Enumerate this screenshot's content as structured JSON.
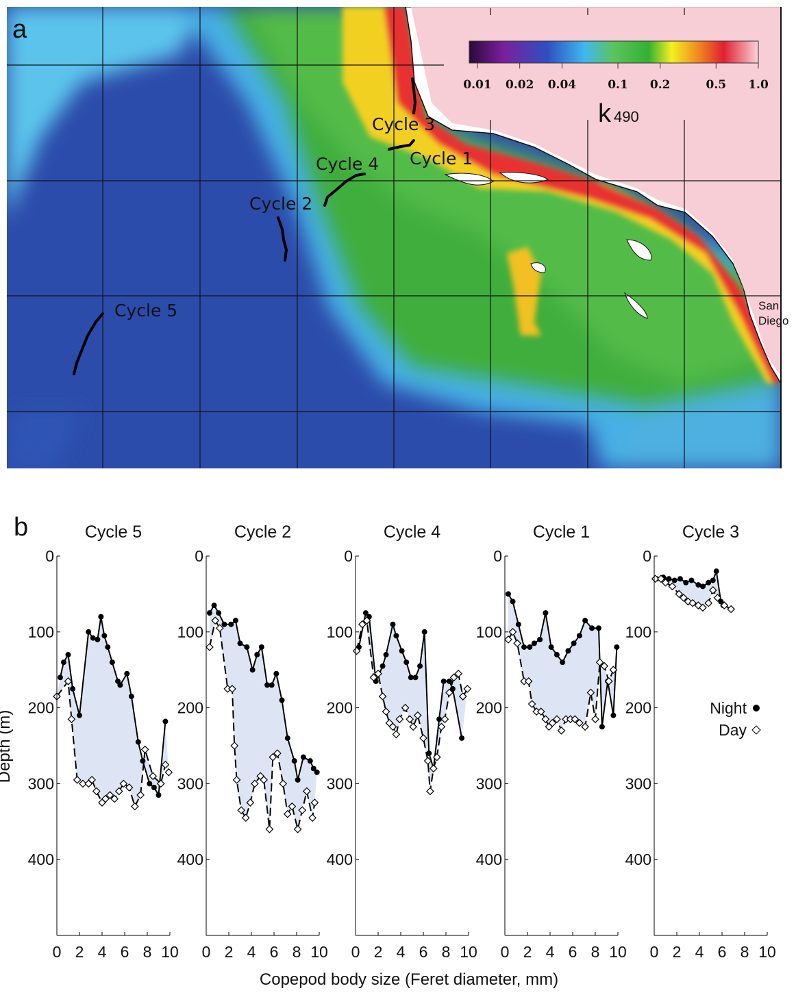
{
  "map": {
    "label": "a",
    "colorbar": {
      "lim": [
        0.01,
        1
      ],
      "log": true,
      "ticks": [
        0.01,
        0.02,
        0.04,
        0.1,
        0.2,
        0.5,
        {
          "value": 1,
          "label": "1.0"
        }
      ],
      "symbol": "k",
      "subscript": "490"
    },
    "tracks": [
      "Cycle 3",
      "Cycle 1",
      "Cycle 4",
      "Cycle 2",
      "Cycle 5"
    ],
    "city": [
      "San",
      "Diego"
    ]
  },
  "panel_b_label": "b",
  "x_label": "Copepod body size (Feret diameter, mm)",
  "y_label": "Depth (m)",
  "legend": {
    "night": "Night",
    "day": "Day"
  },
  "shade_color": "#dde5f4",
  "chart_data": [
    {
      "type": "scatter",
      "title": "Cycle 5",
      "xlim": [
        0,
        10
      ],
      "xticks": [
        0,
        2,
        4,
        6,
        8,
        10
      ],
      "ylim": [
        0,
        500
      ],
      "yticks": [
        0,
        100,
        200,
        300,
        400
      ],
      "y_inverted": true,
      "night": {
        "x": [
          0.3,
          0.6,
          1.0,
          1.4,
          2.0,
          2.8,
          3.2,
          3.6,
          3.9,
          4.2,
          4.5,
          4.9,
          5.4,
          5.6,
          6.2,
          6.6,
          7.2,
          7.6,
          8.2,
          8.6,
          9.0,
          9.6
        ],
        "y": [
          160,
          140,
          130,
          175,
          210,
          100,
          108,
          110,
          80,
          105,
          120,
          140,
          165,
          170,
          155,
          185,
          245,
          270,
          300,
          305,
          315,
          218
        ]
      },
      "day": {
        "x": [
          0.0,
          1.0,
          1.3,
          1.8,
          2.3,
          2.8,
          3.1,
          3.5,
          4.0,
          4.3,
          4.7,
          5.1,
          5.5,
          5.9,
          6.4,
          6.9,
          7.4,
          7.8,
          8.5,
          9.2,
          9.6,
          9.9
        ],
        "y": [
          185,
          165,
          215,
          295,
          300,
          300,
          295,
          310,
          325,
          320,
          315,
          320,
          310,
          300,
          305,
          330,
          315,
          255,
          290,
          300,
          275,
          285
        ]
      }
    },
    {
      "type": "scatter",
      "title": "Cycle 2",
      "xlim": [
        0,
        10
      ],
      "xticks": [
        0,
        2,
        4,
        6,
        8,
        10
      ],
      "ylim": [
        0,
        500
      ],
      "yticks": [
        0,
        100,
        200,
        300,
        400
      ],
      "y_inverted": true,
      "night": {
        "x": [
          0.3,
          0.7,
          1.1,
          1.6,
          2.2,
          2.6,
          3.0,
          3.6,
          4.1,
          4.5,
          4.9,
          5.4,
          5.8,
          6.2,
          6.7,
          7.2,
          7.8,
          8.1,
          8.6,
          9.2,
          9.5,
          9.8
        ],
        "y": [
          75,
          65,
          75,
          90,
          90,
          85,
          115,
          120,
          150,
          130,
          120,
          170,
          170,
          155,
          190,
          240,
          270,
          295,
          265,
          270,
          280,
          285
        ]
      },
      "day": {
        "x": [
          0.3,
          0.8,
          1.2,
          1.9,
          2.3,
          2.5,
          2.7,
          3.1,
          3.5,
          3.9,
          4.3,
          4.8,
          5.1,
          5.6,
          5.9,
          6.3,
          6.8,
          7.2,
          7.6,
          8.1,
          8.5,
          8.9,
          9.4,
          9.6
        ],
        "y": [
          120,
          85,
          95,
          175,
          175,
          250,
          295,
          335,
          345,
          325,
          300,
          290,
          295,
          360,
          265,
          260,
          300,
          340,
          330,
          360,
          335,
          310,
          345,
          325
        ]
      }
    },
    {
      "type": "scatter",
      "title": "Cycle 4",
      "xlim": [
        0,
        10
      ],
      "xticks": [
        0,
        2,
        4,
        6,
        8,
        10
      ],
      "ylim": [
        0,
        500
      ],
      "yticks": [
        0,
        100,
        200,
        300,
        400
      ],
      "y_inverted": true,
      "night": {
        "x": [
          0.3,
          0.9,
          1.2,
          1.8,
          2.4,
          2.7,
          3.3,
          3.6,
          4.1,
          4.5,
          4.9,
          5.3,
          5.7,
          6.1,
          6.5,
          6.9,
          7.4,
          7.8,
          8.3,
          8.6,
          9.4
        ],
        "y": [
          120,
          75,
          80,
          165,
          145,
          130,
          90,
          105,
          125,
          140,
          160,
          160,
          145,
          100,
          260,
          280,
          215,
          165,
          165,
          175,
          240
        ]
      },
      "day": {
        "x": [
          0.1,
          0.6,
          1.0,
          1.6,
          2.0,
          2.4,
          2.7,
          3.0,
          3.3,
          3.6,
          3.9,
          4.4,
          4.8,
          5.1,
          5.5,
          6.0,
          6.4,
          6.6,
          6.9,
          7.2,
          7.6,
          7.9,
          8.3,
          8.7,
          9.1,
          9.5,
          9.9
        ],
        "y": [
          125,
          90,
          85,
          160,
          155,
          185,
          205,
          220,
          225,
          235,
          215,
          200,
          215,
          225,
          210,
          240,
          270,
          310,
          280,
          265,
          225,
          215,
          180,
          160,
          155,
          185,
          175
        ]
      }
    },
    {
      "type": "scatter",
      "title": "Cycle 1",
      "xlim": [
        0,
        10
      ],
      "xticks": [
        0,
        2,
        4,
        6,
        8,
        10
      ],
      "ylim": [
        0,
        500
      ],
      "yticks": [
        0,
        100,
        200,
        300,
        400
      ],
      "y_inverted": true,
      "night": {
        "x": [
          0.3,
          0.7,
          1.2,
          1.7,
          2.2,
          2.6,
          3.1,
          3.6,
          4.1,
          4.6,
          5.1,
          5.6,
          6.1,
          6.6,
          7.1,
          7.7,
          8.3,
          8.6,
          9.1,
          9.6,
          9.9
        ],
        "y": [
          50,
          60,
          90,
          120,
          120,
          115,
          110,
          75,
          120,
          130,
          140,
          125,
          115,
          105,
          85,
          95,
          95,
          225,
          165,
          210,
          120
        ]
      },
      "day": {
        "x": [
          0.3,
          0.7,
          1.1,
          1.7,
          2.1,
          2.4,
          2.8,
          3.2,
          3.6,
          3.9,
          4.2,
          4.6,
          5.0,
          5.4,
          5.8,
          6.2,
          6.6,
          7.1,
          7.6,
          8.0,
          8.4,
          8.8,
          9.2,
          9.6
        ],
        "y": [
          110,
          100,
          115,
          165,
          165,
          195,
          205,
          205,
          215,
          225,
          220,
          215,
          230,
          215,
          215,
          215,
          220,
          225,
          180,
          215,
          140,
          145,
          165,
          150
        ]
      }
    },
    {
      "type": "scatter",
      "title": "Cycle 3",
      "xlim": [
        0,
        10
      ],
      "xticks": [
        0,
        2,
        4,
        6,
        8,
        10
      ],
      "ylim": [
        0,
        500
      ],
      "yticks": [
        0,
        100,
        200,
        300,
        400
      ],
      "y_inverted": true,
      "legend": "right",
      "night": {
        "x": [
          0.2,
          0.8,
          1.3,
          1.8,
          2.3,
          2.8,
          3.3,
          3.9,
          4.3,
          4.8,
          5.2,
          5.5,
          5.9,
          6.1
        ],
        "y": [
          30,
          28,
          30,
          32,
          30,
          35,
          32,
          38,
          40,
          35,
          32,
          20,
          60,
          65
        ]
      },
      "day": {
        "x": [
          0.1,
          0.6,
          1.0,
          1.6,
          2.2,
          2.6,
          3.0,
          3.4,
          3.9,
          4.3,
          4.8,
          5.2,
          5.6,
          6.2,
          6.8
        ],
        "y": [
          30,
          30,
          35,
          40,
          50,
          55,
          60,
          62,
          65,
          68,
          62,
          45,
          55,
          65,
          70
        ]
      }
    }
  ]
}
